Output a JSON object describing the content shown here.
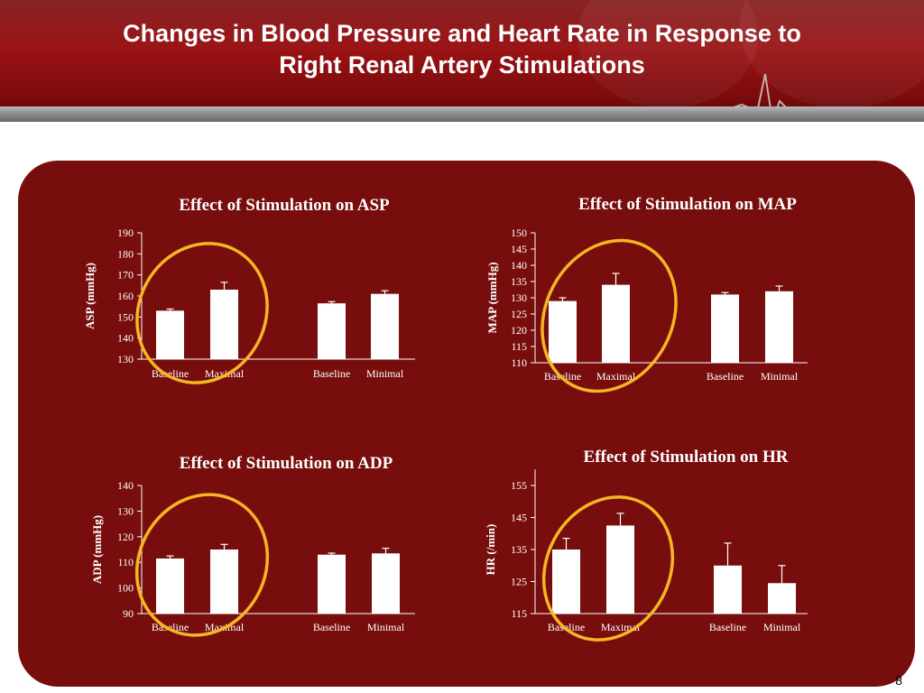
{
  "slide": {
    "title_line1": "Changes in Blood Pressure and Heart Rate in Response to",
    "title_line2": "Right Renal Artery Stimulations",
    "page_number": "8",
    "colors": {
      "header": "#8e0f11",
      "panel": "#770d0c",
      "bars": "#ffffff",
      "highlight": "#f5b623"
    }
  },
  "chart_data": [
    {
      "id": "asp",
      "type": "bar",
      "title": "Effect of Stimulation on ASP",
      "ylabel": "ASP (mmHg)",
      "ylim": [
        130,
        190
      ],
      "yticks": [
        "130",
        "140",
        "150",
        "160",
        "170",
        "180",
        "190"
      ],
      "categories": [
        "Baseline",
        "Maximal",
        "Baseline",
        "Minimal"
      ],
      "values": [
        153,
        163,
        156.5,
        161
      ],
      "errors": [
        0.8,
        3.5,
        0.8,
        1.5
      ],
      "highlight": "first-pair"
    },
    {
      "id": "map",
      "type": "bar",
      "title": "Effect of Stimulation on MAP",
      "ylabel": "MAP (mmHg)",
      "ylim": [
        110,
        150
      ],
      "yticks": [
        "110",
        "115",
        "120",
        "125",
        "130",
        "135",
        "140",
        "145",
        "150"
      ],
      "categories": [
        "Baseline",
        "Maximal",
        "Baseline",
        "Minimal"
      ],
      "values": [
        129,
        134,
        131,
        132
      ],
      "errors": [
        1,
        3.5,
        0.6,
        1.6
      ],
      "highlight": "first-pair"
    },
    {
      "id": "adp",
      "type": "bar",
      "title": "Effect of Stimulation on ADP",
      "ylabel": "ADP (mmHg)",
      "ylim": [
        90,
        140
      ],
      "yticks": [
        "90",
        "100",
        "110",
        "120",
        "130",
        "140"
      ],
      "categories": [
        "Baseline",
        "Maximal",
        "Baseline",
        "Minimal"
      ],
      "values": [
        111.5,
        115,
        113,
        113.5
      ],
      "errors": [
        1,
        2,
        0.6,
        2
      ],
      "highlight": "first-pair"
    },
    {
      "id": "hr",
      "type": "bar",
      "title": "Effect of Stimulation on HR",
      "ylabel": "HR (/min)",
      "ylim": [
        115,
        160
      ],
      "yticks": [
        "115",
        "125",
        "135",
        "145",
        "155"
      ],
      "categories": [
        "Baseline",
        "Maximal",
        "Baseline",
        "Minimal"
      ],
      "values": [
        135,
        142.5,
        130,
        124.5
      ],
      "errors": [
        3.5,
        3.8,
        7,
        5.5
      ],
      "highlight": "first-pair"
    }
  ]
}
